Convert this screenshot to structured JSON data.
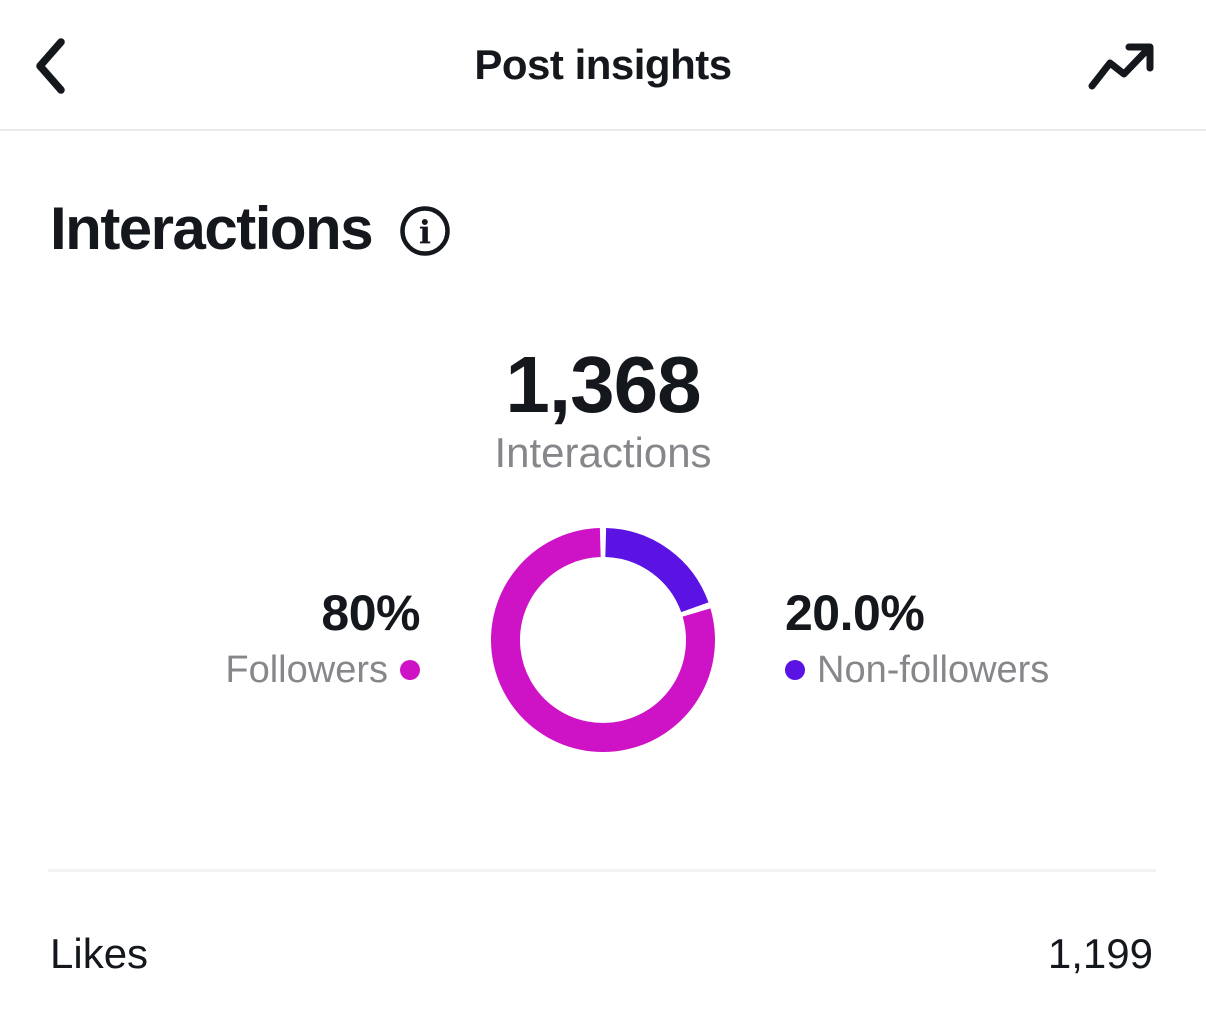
{
  "header": {
    "title": "Post insights",
    "back_icon": "chevron-left",
    "trend_icon": "trending-up"
  },
  "section": {
    "title": "Interactions",
    "info_icon": "info-circle"
  },
  "summary": {
    "total_value": "1,368",
    "total_label": "Interactions"
  },
  "legend": {
    "left": {
      "pct": "80%",
      "label": "Followers",
      "color": "#CE13C6"
    },
    "right": {
      "pct": "20.0%",
      "label": "Non-followers",
      "color": "#5B13E4"
    }
  },
  "metrics": [
    {
      "label": "Likes",
      "value": "1,199"
    }
  ],
  "colors": {
    "followers": "#CE13C6",
    "non_followers": "#5B13E4",
    "text_dark": "#14171C",
    "text_gray": "#85878B",
    "divider": "#F2F2F3"
  },
  "chart_data": {
    "type": "pie",
    "donut": true,
    "title": "1,368",
    "subtitle": "Interactions",
    "start_angle_deg": 0,
    "gap_deg": 3.2,
    "segments": [
      {
        "label": "Non-followers",
        "pct": 20.0,
        "display": "20.0%",
        "color": "#5B13E4"
      },
      {
        "label": "Followers",
        "pct": 80.0,
        "display": "80%",
        "color": "#CE13C6"
      }
    ]
  }
}
